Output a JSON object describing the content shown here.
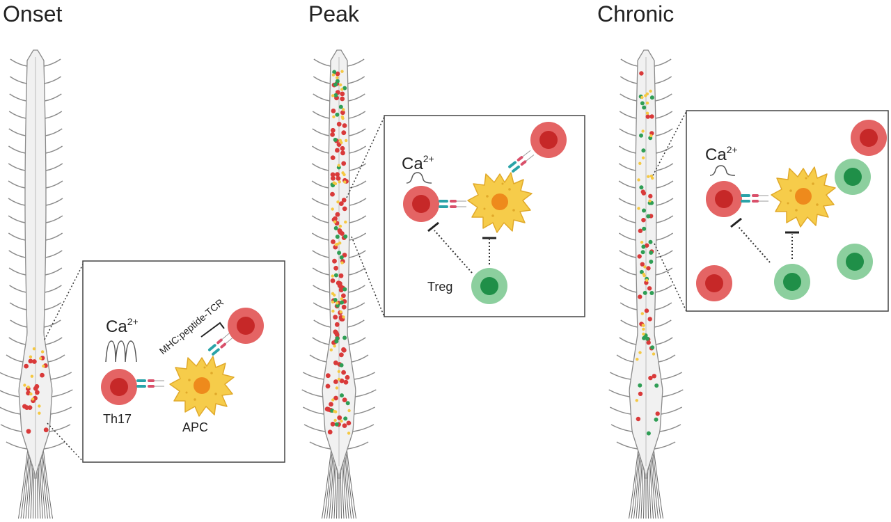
{
  "panels": [
    {
      "title": "Onset"
    },
    {
      "title": "Peak"
    },
    {
      "title": "Chronic"
    }
  ],
  "labels": {
    "calcium_base": "Ca",
    "calcium_sup": "2+",
    "th17": "Th17",
    "apc": "APC",
    "mhc_tcr": "MHC:peptide-TCR",
    "treg": "Treg"
  },
  "colors": {
    "th17": "#d93a3a",
    "th17_light": "#e66a6a",
    "treg": "#2f9e55",
    "treg_light": "#86cf98",
    "apc": "#f5c842",
    "apc_nucleus": "#ef8a1c",
    "cord_fill": "#f1f1f1",
    "cord_line": "#8a8a8a",
    "box_line": "#444444",
    "receptor_teal": "#2aa3a8",
    "receptor_red": "#d9506a"
  },
  "icons": [
    "calcium-trace-icon",
    "inhibition-bar-icon",
    "spinal-cord-icon"
  ]
}
